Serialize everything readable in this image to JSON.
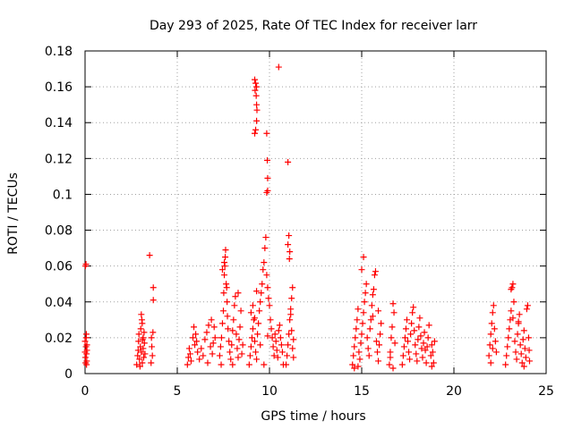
{
  "chart_data": {
    "type": "scatter",
    "title": "Day 293 of 2025, Rate Of TEC Index for receiver larr",
    "xlabel": "GPS time / hours",
    "ylabel": "ROTI / TECUs",
    "xlim": [
      0,
      25
    ],
    "ylim": [
      0,
      0.18
    ],
    "xticks": [
      0,
      5,
      10,
      15,
      20,
      25
    ],
    "xtick_labels": [
      "0",
      "5",
      "10",
      "15",
      "20",
      "25"
    ],
    "yticks": [
      0,
      0.02,
      0.04,
      0.06,
      0.08,
      0.1,
      0.12,
      0.14,
      0.16,
      0.18
    ],
    "ytick_labels": [
      "0",
      "0.02",
      "0.04",
      "0.06",
      "0.08",
      "0.1",
      "0.12",
      "0.14",
      "0.16",
      "0.18"
    ],
    "grid": true,
    "marker": "+",
    "marker_color": "#ff0000",
    "series": [
      {
        "points": [
          [
            0.0,
            0.018
          ],
          [
            0.0,
            0.012
          ],
          [
            0.02,
            0.009
          ],
          [
            0.03,
            0.006
          ],
          [
            0.05,
            0.015
          ],
          [
            0.06,
            0.02
          ],
          [
            0.07,
            0.022
          ],
          [
            0.08,
            0.011
          ],
          [
            0.09,
            0.007
          ],
          [
            0.1,
            0.016
          ],
          [
            0.05,
            0.061
          ],
          [
            0.02,
            0.06
          ],
          [
            0.08,
            0.005
          ],
          [
            0.1,
            0.013
          ],
          [
            2.8,
            0.005
          ],
          [
            2.85,
            0.01
          ],
          [
            2.9,
            0.018
          ],
          [
            2.92,
            0.022
          ],
          [
            2.95,
            0.008
          ],
          [
            3.0,
            0.015
          ],
          [
            3.02,
            0.025
          ],
          [
            3.05,
            0.012
          ],
          [
            3.08,
            0.03
          ],
          [
            3.1,
            0.006
          ],
          [
            3.12,
            0.019
          ],
          [
            3.15,
            0.014
          ],
          [
            3.18,
            0.009
          ],
          [
            3.2,
            0.023
          ],
          [
            3.22,
            0.017
          ],
          [
            3.25,
            0.011
          ],
          [
            3.05,
            0.033
          ],
          [
            3.1,
            0.028
          ],
          [
            2.88,
            0.013
          ],
          [
            2.98,
            0.004
          ],
          [
            3.15,
            0.02
          ],
          [
            3.5,
            0.066
          ],
          [
            3.6,
            0.02
          ],
          [
            3.62,
            0.015
          ],
          [
            3.65,
            0.01
          ],
          [
            3.68,
            0.023
          ],
          [
            3.7,
            0.048
          ],
          [
            3.7,
            0.041
          ],
          [
            3.58,
            0.006
          ],
          [
            5.55,
            0.005
          ],
          [
            5.6,
            0.009
          ],
          [
            5.65,
            0.014
          ],
          [
            5.7,
            0.011
          ],
          [
            5.75,
            0.007
          ],
          [
            5.85,
            0.02
          ],
          [
            5.9,
            0.026
          ],
          [
            5.95,
            0.016
          ],
          [
            6.0,
            0.022
          ],
          [
            6.05,
            0.018
          ],
          [
            6.1,
            0.012
          ],
          [
            6.2,
            0.008
          ],
          [
            6.3,
            0.014
          ],
          [
            6.4,
            0.01
          ],
          [
            6.5,
            0.019
          ],
          [
            6.6,
            0.023
          ],
          [
            6.7,
            0.027
          ],
          [
            6.8,
            0.015
          ],
          [
            6.9,
            0.011
          ],
          [
            6.95,
            0.017
          ],
          [
            7.0,
            0.026
          ],
          [
            7.05,
            0.02
          ],
          [
            6.85,
            0.03
          ],
          [
            6.65,
            0.006
          ],
          [
            7.3,
            0.01
          ],
          [
            7.35,
            0.015
          ],
          [
            7.4,
            0.02
          ],
          [
            7.45,
            0.028
          ],
          [
            7.5,
            0.035
          ],
          [
            7.52,
            0.045
          ],
          [
            7.55,
            0.055
          ],
          [
            7.58,
            0.06
          ],
          [
            7.6,
            0.065
          ],
          [
            7.62,
            0.069
          ],
          [
            7.65,
            0.05
          ],
          [
            7.7,
            0.04
          ],
          [
            7.72,
            0.032
          ],
          [
            7.75,
            0.025
          ],
          [
            7.8,
            0.018
          ],
          [
            7.85,
            0.012
          ],
          [
            7.9,
            0.008
          ],
          [
            7.95,
            0.016
          ],
          [
            8.0,
            0.024
          ],
          [
            8.05,
            0.03
          ],
          [
            8.1,
            0.038
          ],
          [
            8.15,
            0.043
          ],
          [
            8.2,
            0.022
          ],
          [
            8.25,
            0.014
          ],
          [
            8.3,
            0.009
          ],
          [
            8.35,
            0.019
          ],
          [
            8.4,
            0.026
          ],
          [
            8.45,
            0.035
          ],
          [
            8.5,
            0.011
          ],
          [
            8.55,
            0.016
          ],
          [
            7.45,
            0.058
          ],
          [
            7.55,
            0.062
          ],
          [
            7.68,
            0.048
          ],
          [
            8.3,
            0.045
          ],
          [
            7.38,
            0.005
          ],
          [
            8.0,
            0.005
          ],
          [
            8.9,
            0.005
          ],
          [
            8.95,
            0.01
          ],
          [
            9.0,
            0.015
          ],
          [
            9.05,
            0.02
          ],
          [
            9.1,
            0.025
          ],
          [
            9.15,
            0.03
          ],
          [
            9.2,
            0.018
          ],
          [
            9.25,
            0.012
          ],
          [
            9.3,
            0.008
          ],
          [
            9.35,
            0.022
          ],
          [
            9.4,
            0.028
          ],
          [
            9.45,
            0.035
          ],
          [
            9.5,
            0.04
          ],
          [
            9.55,
            0.045
          ],
          [
            9.6,
            0.05
          ],
          [
            9.65,
            0.058
          ],
          [
            9.7,
            0.062
          ],
          [
            9.75,
            0.07
          ],
          [
            9.8,
            0.076
          ],
          [
            9.85,
            0.055
          ],
          [
            9.9,
            0.048
          ],
          [
            9.95,
            0.042
          ],
          [
            10.0,
            0.038
          ],
          [
            10.05,
            0.03
          ],
          [
            10.1,
            0.025
          ],
          [
            10.15,
            0.02
          ],
          [
            10.2,
            0.015
          ],
          [
            10.25,
            0.01
          ],
          [
            10.3,
            0.022
          ],
          [
            10.35,
            0.018
          ],
          [
            10.4,
            0.013
          ],
          [
            10.45,
            0.009
          ],
          [
            10.5,
            0.024
          ],
          [
            10.55,
            0.027
          ],
          [
            10.6,
            0.02
          ],
          [
            10.65,
            0.016
          ],
          [
            10.7,
            0.012
          ],
          [
            10.75,
            0.005
          ],
          [
            9.0,
            0.034
          ],
          [
            9.1,
            0.038
          ],
          [
            9.2,
            0.031
          ],
          [
            9.3,
            0.046
          ],
          [
            9.5,
            0.016
          ],
          [
            9.7,
            0.005
          ],
          [
            9.9,
            0.021
          ],
          [
            9.2,
            0.164
          ],
          [
            9.25,
            0.162
          ],
          [
            9.3,
            0.16
          ],
          [
            9.22,
            0.158
          ],
          [
            9.28,
            0.155
          ],
          [
            9.3,
            0.15
          ],
          [
            9.32,
            0.147
          ],
          [
            9.3,
            0.141
          ],
          [
            9.25,
            0.136
          ],
          [
            9.2,
            0.134
          ],
          [
            9.85,
            0.134
          ],
          [
            9.88,
            0.119
          ],
          [
            9.9,
            0.109
          ],
          [
            9.9,
            0.102
          ],
          [
            9.85,
            0.101
          ],
          [
            10.5,
            0.171
          ],
          [
            11.0,
            0.118
          ],
          [
            10.9,
            0.005
          ],
          [
            10.95,
            0.01
          ],
          [
            11.0,
            0.016
          ],
          [
            11.05,
            0.022
          ],
          [
            11.1,
            0.03
          ],
          [
            11.15,
            0.036
          ],
          [
            11.2,
            0.042
          ],
          [
            11.25,
            0.048
          ],
          [
            11.0,
            0.072
          ],
          [
            11.05,
            0.077
          ],
          [
            11.1,
            0.068
          ],
          [
            11.15,
            0.033
          ],
          [
            11.2,
            0.024
          ],
          [
            11.25,
            0.014
          ],
          [
            11.3,
            0.009
          ],
          [
            11.3,
            0.019
          ],
          [
            11.08,
            0.064
          ],
          [
            14.5,
            0.005
          ],
          [
            14.55,
            0.01
          ],
          [
            14.6,
            0.015
          ],
          [
            14.65,
            0.02
          ],
          [
            14.7,
            0.025
          ],
          [
            14.75,
            0.03
          ],
          [
            14.8,
            0.036
          ],
          [
            14.85,
            0.012
          ],
          [
            14.9,
            0.008
          ],
          [
            14.95,
            0.017
          ],
          [
            15.0,
            0.022
          ],
          [
            15.05,
            0.028
          ],
          [
            15.1,
            0.034
          ],
          [
            15.15,
            0.04
          ],
          [
            15.2,
            0.045
          ],
          [
            15.25,
            0.05
          ],
          [
            15.3,
            0.02
          ],
          [
            15.35,
            0.014
          ],
          [
            15.4,
            0.01
          ],
          [
            15.45,
            0.025
          ],
          [
            15.5,
            0.03
          ],
          [
            15.55,
            0.038
          ],
          [
            15.6,
            0.044
          ],
          [
            15.65,
            0.047
          ],
          [
            15.7,
            0.055
          ],
          [
            15.75,
            0.057
          ],
          [
            15.8,
            0.018
          ],
          [
            15.85,
            0.012
          ],
          [
            15.9,
            0.007
          ],
          [
            15.95,
            0.016
          ],
          [
            16.0,
            0.022
          ],
          [
            16.05,
            0.028
          ],
          [
            14.6,
            0.003
          ],
          [
            14.8,
            0.004
          ],
          [
            15.0,
            0.058
          ],
          [
            15.1,
            0.065
          ],
          [
            15.6,
            0.032
          ],
          [
            15.9,
            0.035
          ],
          [
            16.5,
            0.005
          ],
          [
            16.55,
            0.012
          ],
          [
            16.6,
            0.02
          ],
          [
            16.65,
            0.026
          ],
          [
            16.7,
            0.039
          ],
          [
            16.75,
            0.034
          ],
          [
            16.8,
            0.017
          ],
          [
            16.55,
            0.009
          ],
          [
            16.7,
            0.003
          ],
          [
            17.2,
            0.005
          ],
          [
            17.25,
            0.01
          ],
          [
            17.3,
            0.015
          ],
          [
            17.35,
            0.02
          ],
          [
            17.4,
            0.025
          ],
          [
            17.45,
            0.03
          ],
          [
            17.5,
            0.018
          ],
          [
            17.55,
            0.012
          ],
          [
            17.6,
            0.008
          ],
          [
            17.65,
            0.022
          ],
          [
            17.7,
            0.028
          ],
          [
            17.75,
            0.034
          ],
          [
            17.8,
            0.037
          ],
          [
            17.85,
            0.024
          ],
          [
            17.9,
            0.016
          ],
          [
            17.95,
            0.011
          ],
          [
            18.0,
            0.007
          ],
          [
            18.05,
            0.019
          ],
          [
            18.1,
            0.026
          ],
          [
            18.15,
            0.031
          ],
          [
            18.2,
            0.021
          ],
          [
            18.25,
            0.014
          ],
          [
            18.3,
            0.009
          ],
          [
            18.35,
            0.017
          ],
          [
            18.4,
            0.023
          ],
          [
            18.45,
            0.013
          ],
          [
            18.5,
            0.006
          ],
          [
            18.55,
            0.015
          ],
          [
            18.6,
            0.02
          ],
          [
            18.65,
            0.027
          ],
          [
            18.75,
            0.01
          ],
          [
            18.8,
            0.016
          ],
          [
            18.85,
            0.012
          ],
          [
            18.9,
            0.006
          ],
          [
            18.95,
            0.018
          ],
          [
            18.8,
            0.004
          ],
          [
            21.9,
            0.01
          ],
          [
            21.95,
            0.016
          ],
          [
            22.0,
            0.022
          ],
          [
            22.05,
            0.028
          ],
          [
            22.1,
            0.034
          ],
          [
            22.15,
            0.038
          ],
          [
            22.2,
            0.025
          ],
          [
            22.25,
            0.018
          ],
          [
            22.3,
            0.012
          ],
          [
            22.0,
            0.006
          ],
          [
            22.1,
            0.014
          ],
          [
            22.8,
            0.005
          ],
          [
            22.85,
            0.01
          ],
          [
            22.9,
            0.015
          ],
          [
            22.95,
            0.02
          ],
          [
            23.0,
            0.025
          ],
          [
            23.05,
            0.03
          ],
          [
            23.1,
            0.035
          ],
          [
            23.15,
            0.048
          ],
          [
            23.2,
            0.05
          ],
          [
            23.25,
            0.04
          ],
          [
            23.3,
            0.018
          ],
          [
            23.35,
            0.012
          ],
          [
            23.4,
            0.008
          ],
          [
            23.45,
            0.022
          ],
          [
            23.5,
            0.028
          ],
          [
            23.55,
            0.033
          ],
          [
            23.6,
            0.016
          ],
          [
            23.65,
            0.011
          ],
          [
            23.7,
            0.006
          ],
          [
            23.75,
            0.019
          ],
          [
            23.8,
            0.024
          ],
          [
            23.85,
            0.014
          ],
          [
            23.9,
            0.009
          ],
          [
            23.95,
            0.036
          ],
          [
            24.0,
            0.038
          ],
          [
            24.05,
            0.02
          ],
          [
            24.08,
            0.013
          ],
          [
            24.1,
            0.007
          ],
          [
            23.1,
            0.047
          ],
          [
            23.2,
            0.031
          ],
          [
            23.5,
            0.029
          ],
          [
            23.8,
            0.004
          ]
        ]
      }
    ]
  }
}
